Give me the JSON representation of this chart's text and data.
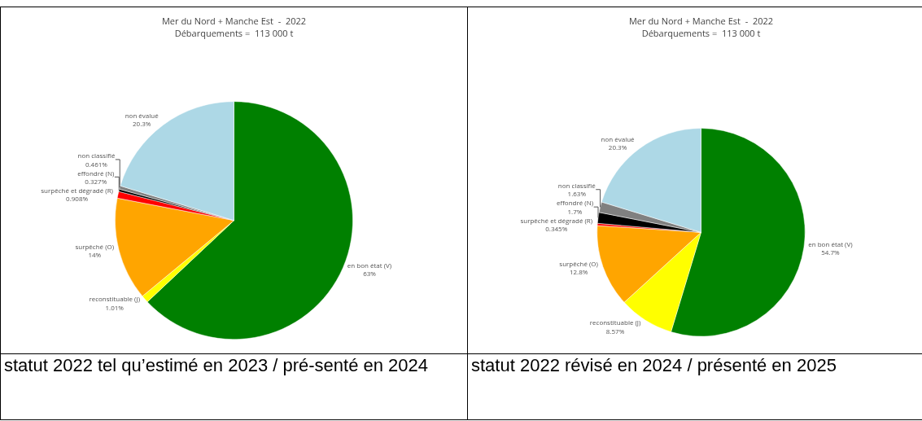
{
  "chart_data": [
    {
      "type": "pie",
      "title": "Mer du Nord + Manche Est  -  2022\nDébarquements =  113 000 t",
      "categories": [
        "en bon état (V)",
        "reconstituable (J)",
        "surpêché (O)",
        "surpêché et dégradé (R)",
        "effondré (N)",
        "non classifié",
        "non évalué"
      ],
      "values": [
        63,
        1.01,
        14,
        0.908,
        0.327,
        0.461,
        20.3
      ],
      "value_labels": [
        "63%",
        "1.01%",
        "14%",
        "0.908%",
        "0.327%",
        "0.461%",
        "20.3%"
      ],
      "colors": [
        "#008000",
        "#ffff00",
        "#ffa500",
        "#ff0000",
        "#000000",
        "#808080",
        "#add8e6"
      ],
      "legend": false,
      "annotations": [
        "statut 2022 tel qu’estimé en 2023 / pré-senté en 2024"
      ]
    },
    {
      "type": "pie",
      "title": "Mer du Nord + Manche Est  -  2022\nDébarquements =  113 000 t",
      "categories": [
        "en bon état (V)",
        "reconstituable (J)",
        "surpêché (O)",
        "surpêché et dégradé (R)",
        "effondré (N)",
        "non classifié",
        "non évalué"
      ],
      "values": [
        54.7,
        8.57,
        12.8,
        0.345,
        1.7,
        1.63,
        20.3
      ],
      "value_labels": [
        "54.7%",
        "8.57%",
        "12.8%",
        "0.345%",
        "1.7%",
        "1.63%",
        "20.3%"
      ],
      "colors": [
        "#008000",
        "#ffff00",
        "#ffa500",
        "#ff0000",
        "#000000",
        "#808080",
        "#add8e6"
      ],
      "legend": false,
      "annotations": [
        "statut 2022 révisé en 2024 / présenté en 2025"
      ]
    }
  ]
}
